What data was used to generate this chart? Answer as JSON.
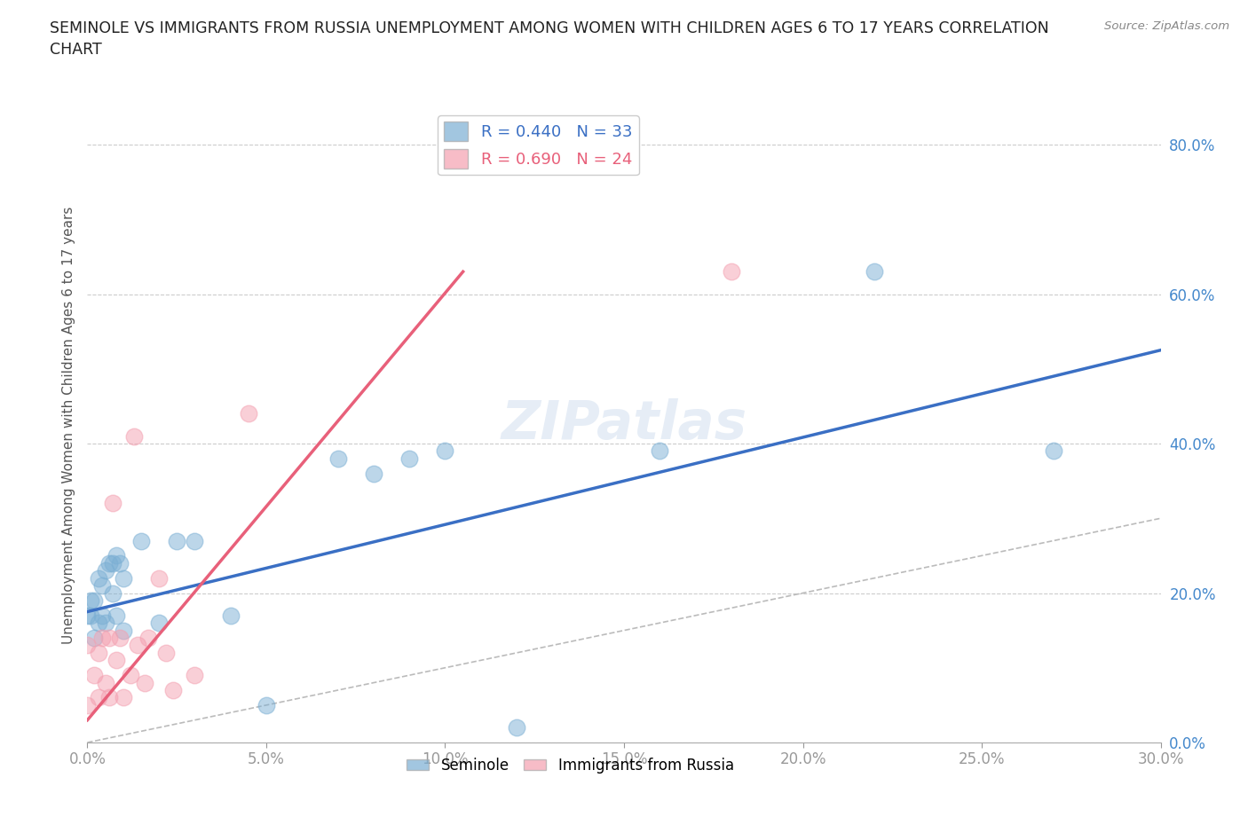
{
  "title": "SEMINOLE VS IMMIGRANTS FROM RUSSIA UNEMPLOYMENT AMONG WOMEN WITH CHILDREN AGES 6 TO 17 YEARS CORRELATION\nCHART",
  "source": "Source: ZipAtlas.com",
  "ylabel": "Unemployment Among Women with Children Ages 6 to 17 years",
  "xlim": [
    0.0,
    0.3
  ],
  "ylim": [
    0.0,
    0.85
  ],
  "yticks": [
    0.0,
    0.2,
    0.4,
    0.6,
    0.8
  ],
  "xticks": [
    0.0,
    0.05,
    0.1,
    0.15,
    0.2,
    0.25,
    0.3
  ],
  "seminole_R": 0.44,
  "seminole_N": 33,
  "russia_R": 0.69,
  "russia_N": 24,
  "seminole_color": "#7BAFD4",
  "russia_color": "#F4A0B0",
  "seminole_line_color": "#3A6FC4",
  "russia_line_color": "#E8607A",
  "diagonal_color": "#BBBBBB",
  "seminole_x": [
    0.0,
    0.001,
    0.001,
    0.002,
    0.002,
    0.003,
    0.003,
    0.004,
    0.004,
    0.005,
    0.005,
    0.006,
    0.007,
    0.007,
    0.008,
    0.008,
    0.009,
    0.01,
    0.01,
    0.015,
    0.02,
    0.025,
    0.03,
    0.04,
    0.05,
    0.07,
    0.08,
    0.09,
    0.1,
    0.12,
    0.16,
    0.22,
    0.27
  ],
  "seminole_y": [
    0.17,
    0.19,
    0.17,
    0.14,
    0.19,
    0.16,
    0.22,
    0.17,
    0.21,
    0.16,
    0.23,
    0.24,
    0.2,
    0.24,
    0.17,
    0.25,
    0.24,
    0.22,
    0.15,
    0.27,
    0.16,
    0.27,
    0.27,
    0.17,
    0.05,
    0.38,
    0.36,
    0.38,
    0.39,
    0.02,
    0.39,
    0.63,
    0.39
  ],
  "russia_x": [
    0.0,
    0.0,
    0.002,
    0.003,
    0.003,
    0.004,
    0.005,
    0.006,
    0.006,
    0.007,
    0.008,
    0.009,
    0.01,
    0.012,
    0.013,
    0.014,
    0.016,
    0.017,
    0.02,
    0.022,
    0.024,
    0.03,
    0.045,
    0.18
  ],
  "russia_y": [
    0.05,
    0.13,
    0.09,
    0.06,
    0.12,
    0.14,
    0.08,
    0.14,
    0.06,
    0.32,
    0.11,
    0.14,
    0.06,
    0.09,
    0.41,
    0.13,
    0.08,
    0.14,
    0.22,
    0.12,
    0.07,
    0.09,
    0.44,
    0.63
  ],
  "seminole_line_x": [
    0.0,
    0.3
  ],
  "seminole_line_y": [
    0.175,
    0.525
  ],
  "russia_line_x": [
    0.0,
    0.105
  ],
  "russia_line_y": [
    0.03,
    0.63
  ],
  "watermark_text": "ZIPatlas",
  "background_color": "#FFFFFF",
  "grid_color": "#CCCCCC"
}
